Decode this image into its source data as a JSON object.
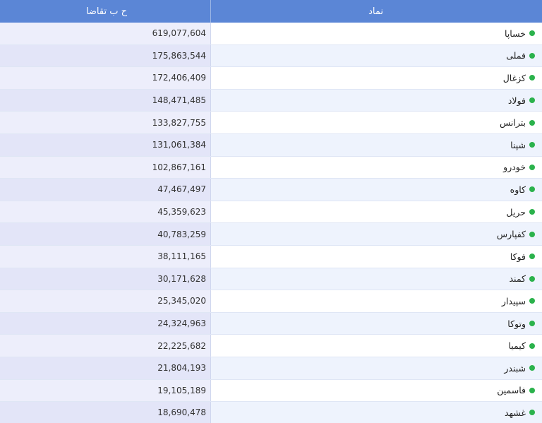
{
  "header": {
    "volume_label": "ح ب تقاضا",
    "symbol_label": "نماد"
  },
  "status_color": "#2bb24c",
  "rows": [
    {
      "symbol": "خساپا",
      "volume": "619,077,604"
    },
    {
      "symbol": "فملی",
      "volume": "175,863,544"
    },
    {
      "symbol": "کزغال",
      "volume": "172,406,409"
    },
    {
      "symbol": "فولاد",
      "volume": "148,471,485"
    },
    {
      "symbol": "بترانس",
      "volume": "133,827,755"
    },
    {
      "symbol": "شپنا",
      "volume": "131,061,384"
    },
    {
      "symbol": "خودرو",
      "volume": "102,867,161"
    },
    {
      "symbol": "کاوه",
      "volume": "47,467,497"
    },
    {
      "symbol": "حریل",
      "volume": "45,359,623"
    },
    {
      "symbol": "کفپارس",
      "volume": "40,783,259"
    },
    {
      "symbol": "فوکا",
      "volume": "38,111,165"
    },
    {
      "symbol": "کمند",
      "volume": "30,171,628"
    },
    {
      "symbol": "سپیدار",
      "volume": "25,345,020"
    },
    {
      "symbol": "وتوکا",
      "volume": "24,324,963"
    },
    {
      "symbol": "کیمیا",
      "volume": "22,225,682"
    },
    {
      "symbol": "شبندر",
      "volume": "21,804,193"
    },
    {
      "symbol": "فاسمین",
      "volume": "19,105,189"
    },
    {
      "symbol": "غشهد",
      "volume": "18,690,478"
    }
  ]
}
